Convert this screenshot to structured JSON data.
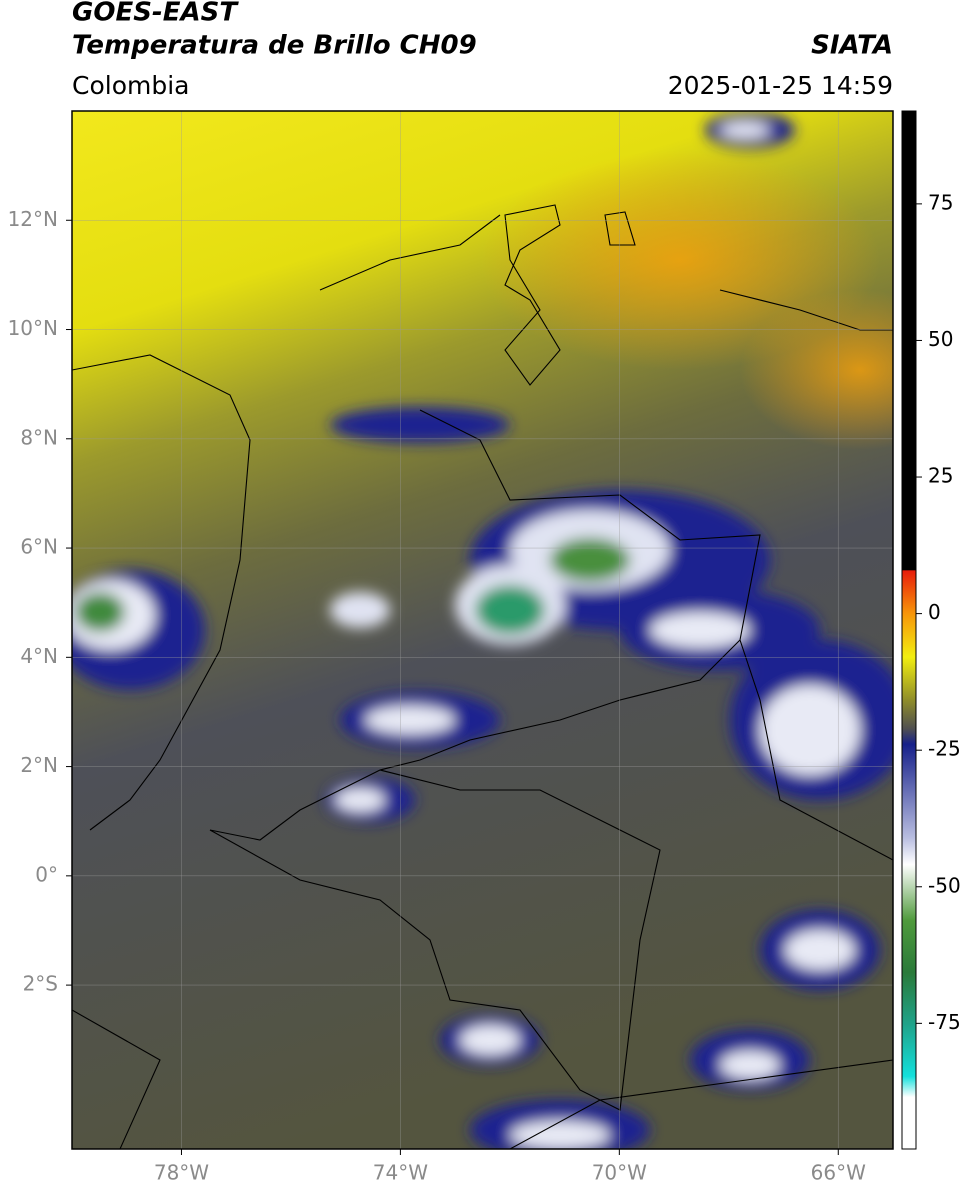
{
  "header": {
    "satellite": "GOES-EAST",
    "product": "Temperatura de Brillo CH09",
    "source": "SIATA",
    "region": "Colombia",
    "datetime": "2025-01-25 14:59"
  },
  "map": {
    "xlim": [
      -80,
      -65
    ],
    "ylim": [
      -5,
      14
    ],
    "xticks": [
      {
        "value": -78,
        "label": "78°W"
      },
      {
        "value": -74,
        "label": "74°W"
      },
      {
        "value": -70,
        "label": "70°W"
      },
      {
        "value": -66,
        "label": "66°W"
      }
    ],
    "yticks": [
      {
        "value": 12,
        "label": "12°N"
      },
      {
        "value": 10,
        "label": "10°N"
      },
      {
        "value": 8,
        "label": "8°N"
      },
      {
        "value": 6,
        "label": "6°N"
      },
      {
        "value": 4,
        "label": "4°N"
      },
      {
        "value": 2,
        "label": "2°N"
      },
      {
        "value": 0,
        "label": "0°"
      },
      {
        "value": -2,
        "label": "2°S"
      }
    ],
    "grid": true
  },
  "colorbar": {
    "lim": [
      -98,
      92
    ],
    "ticks": [
      75,
      50,
      25,
      0,
      -25,
      -50,
      -75
    ]
  }
}
